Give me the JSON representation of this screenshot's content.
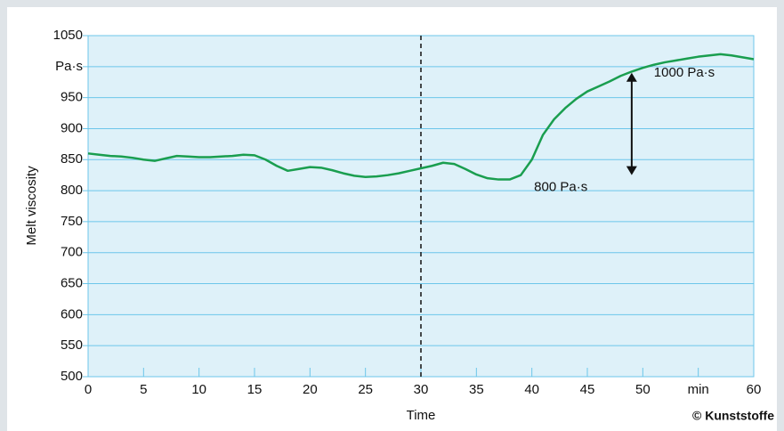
{
  "chart_data": {
    "type": "line",
    "ylabel": "Melt viscosity",
    "xlabel": "Time",
    "credit": "© Kunststoffe",
    "x": [
      0,
      1,
      2,
      3,
      4,
      5,
      6,
      7,
      8,
      9,
      10,
      11,
      12,
      13,
      14,
      15,
      16,
      17,
      18,
      19,
      20,
      21,
      22,
      23,
      24,
      25,
      26,
      27,
      28,
      29,
      30,
      31,
      32,
      33,
      34,
      35,
      36,
      37,
      38,
      39,
      40,
      41,
      42,
      43,
      44,
      45,
      46,
      47,
      48,
      49,
      50,
      51,
      52,
      53,
      54,
      55,
      56,
      57,
      58,
      59,
      60
    ],
    "values": [
      860,
      858,
      856,
      855,
      853,
      850,
      848,
      852,
      856,
      855,
      854,
      854,
      855,
      856,
      858,
      857,
      850,
      840,
      832,
      835,
      838,
      837,
      833,
      828,
      824,
      822,
      823,
      825,
      828,
      832,
      836,
      840,
      845,
      843,
      835,
      826,
      820,
      818,
      818,
      825,
      850,
      890,
      915,
      933,
      948,
      960,
      968,
      976,
      985,
      992,
      998,
      1003,
      1007,
      1010,
      1013,
      1016,
      1018,
      1020,
      1018,
      1015,
      1012
    ],
    "color": "#1a9e4f",
    "xlim": [
      0,
      60
    ],
    "ylim": [
      500,
      1050
    ],
    "xticks": [
      0,
      5,
      10,
      15,
      20,
      25,
      30,
      35,
      40,
      45,
      50,
      {
        "value": 55,
        "label": "min"
      },
      60
    ],
    "yticks": [
      500,
      550,
      600,
      650,
      700,
      750,
      800,
      850,
      900,
      950,
      {
        "value": 1000,
        "label": "Pa·s"
      },
      1050
    ],
    "grid": true,
    "vline": 30,
    "arrow": {
      "x": 49,
      "y": [
        990,
        825
      ]
    },
    "annotations": [
      {
        "text": "1000 Pa·s",
        "x": 51,
        "y": 990
      },
      {
        "text": "800 Pa·s",
        "x": 40.2,
        "y": 805
      }
    ]
  }
}
